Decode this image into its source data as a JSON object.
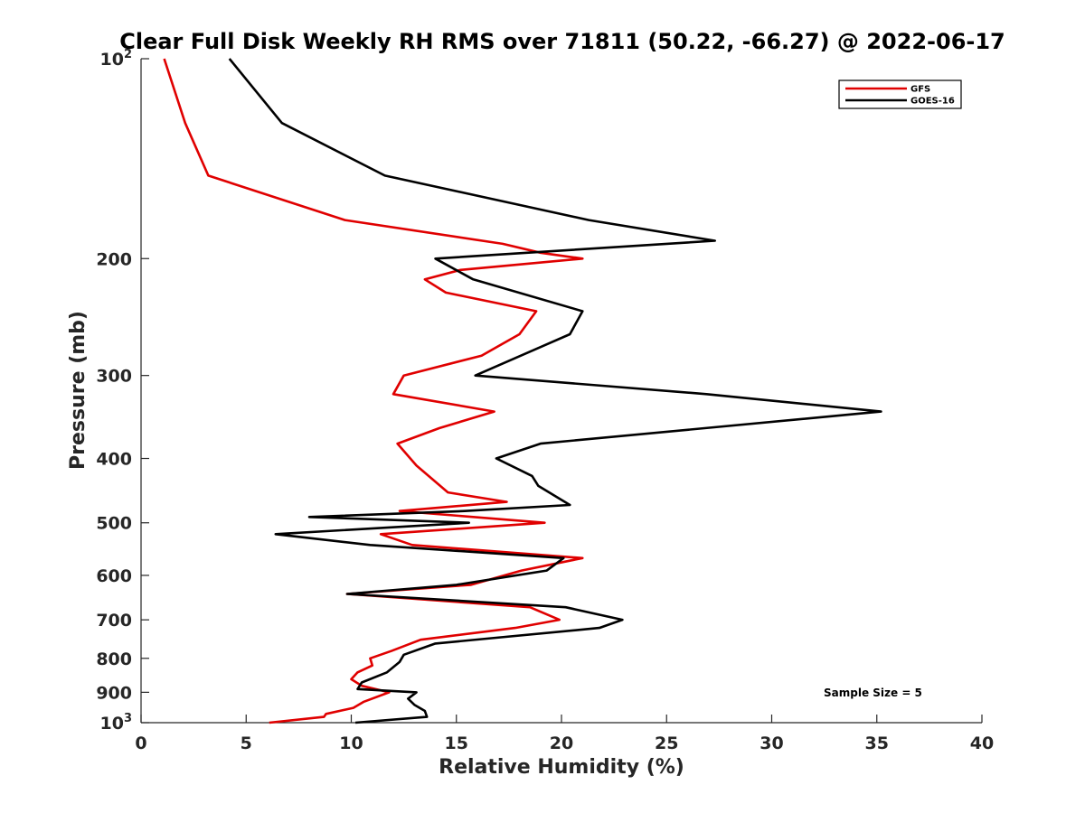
{
  "chart_data": {
    "type": "line",
    "title": "Clear Full Disk Weekly RH RMS over 71811 (50.22, -66.27) @ 2022-06-17",
    "xlabel": "Relative Humidity (%)",
    "ylabel": "Pressure (mb)",
    "xlim": [
      0,
      40
    ],
    "ylim": [
      100,
      1000
    ],
    "y_scale": "log",
    "y_reversed": true,
    "grid": false,
    "x_ticks": [
      "0",
      "5",
      "10",
      "15",
      "20",
      "25",
      "30",
      "35",
      "40"
    ],
    "y_ticks": [
      {
        "value": 100,
        "base": "10",
        "exp": "2",
        "label": ""
      },
      {
        "value": 200,
        "label": "200"
      },
      {
        "value": 300,
        "label": "300"
      },
      {
        "value": 400,
        "label": "400"
      },
      {
        "value": 500,
        "label": "500"
      },
      {
        "value": 600,
        "label": "600"
      },
      {
        "value": 700,
        "label": "700"
      },
      {
        "value": 800,
        "label": "800"
      },
      {
        "value": 900,
        "label": "900"
      },
      {
        "value": 1000,
        "base": "10",
        "exp": "3",
        "label": ""
      }
    ],
    "legend_position": "top-right",
    "annotations": [
      "Sample Size = 5"
    ],
    "series": [
      {
        "name": "GFS",
        "color": "#e00000",
        "points": [
          [
            1.1,
            100
          ],
          [
            2.1,
            125
          ],
          [
            3.2,
            150
          ],
          [
            9.7,
            175
          ],
          [
            17.2,
            190
          ],
          [
            19.0,
            196
          ],
          [
            21.0,
            200
          ],
          [
            15.2,
            208
          ],
          [
            13.5,
            215
          ],
          [
            14.5,
            225
          ],
          [
            18.8,
            240
          ],
          [
            18.0,
            260
          ],
          [
            16.2,
            280
          ],
          [
            12.5,
            300
          ],
          [
            12.0,
            320
          ],
          [
            16.8,
            340
          ],
          [
            14.2,
            360
          ],
          [
            12.2,
            380
          ],
          [
            13.1,
            410
          ],
          [
            14.6,
            450
          ],
          [
            17.4,
            465
          ],
          [
            12.3,
            480
          ],
          [
            19.2,
            500
          ],
          [
            11.4,
            520
          ],
          [
            12.9,
            540
          ],
          [
            21.0,
            565
          ],
          [
            18.1,
            590
          ],
          [
            15.7,
            620
          ],
          [
            9.8,
            640
          ],
          [
            18.5,
            670
          ],
          [
            19.9,
            700
          ],
          [
            17.8,
            720
          ],
          [
            13.3,
            750
          ],
          [
            11.9,
            780
          ],
          [
            10.9,
            800
          ],
          [
            11.0,
            820
          ],
          [
            10.3,
            840
          ],
          [
            10.0,
            860
          ],
          [
            10.5,
            880
          ],
          [
            11.8,
            900
          ],
          [
            10.6,
            930
          ],
          [
            10.1,
            950
          ],
          [
            8.8,
            970
          ],
          [
            8.7,
            980
          ],
          [
            6.1,
            1000
          ]
        ]
      },
      {
        "name": "GOES-16",
        "color": "#000000",
        "points": [
          [
            4.2,
            100
          ],
          [
            6.7,
            125
          ],
          [
            11.6,
            150
          ],
          [
            21.3,
            175
          ],
          [
            27.3,
            188
          ],
          [
            14.0,
            200
          ],
          [
            15.8,
            215
          ],
          [
            21.0,
            240
          ],
          [
            20.4,
            260
          ],
          [
            15.9,
            300
          ],
          [
            26.9,
            320
          ],
          [
            35.2,
            340
          ],
          [
            19.0,
            380
          ],
          [
            16.9,
            400
          ],
          [
            18.6,
            425
          ],
          [
            18.9,
            440
          ],
          [
            20.4,
            470
          ],
          [
            15.4,
            480
          ],
          [
            8.0,
            490
          ],
          [
            15.6,
            500
          ],
          [
            6.4,
            520
          ],
          [
            10.9,
            540
          ],
          [
            20.1,
            565
          ],
          [
            19.3,
            590
          ],
          [
            15.0,
            620
          ],
          [
            9.8,
            640
          ],
          [
            20.2,
            670
          ],
          [
            22.9,
            700
          ],
          [
            21.8,
            720
          ],
          [
            14.0,
            760
          ],
          [
            12.5,
            790
          ],
          [
            12.3,
            810
          ],
          [
            11.7,
            840
          ],
          [
            10.5,
            870
          ],
          [
            10.3,
            890
          ],
          [
            13.1,
            900
          ],
          [
            12.7,
            920
          ],
          [
            13.0,
            940
          ],
          [
            13.5,
            960
          ],
          [
            13.6,
            980
          ],
          [
            10.2,
            1000
          ]
        ]
      }
    ]
  }
}
